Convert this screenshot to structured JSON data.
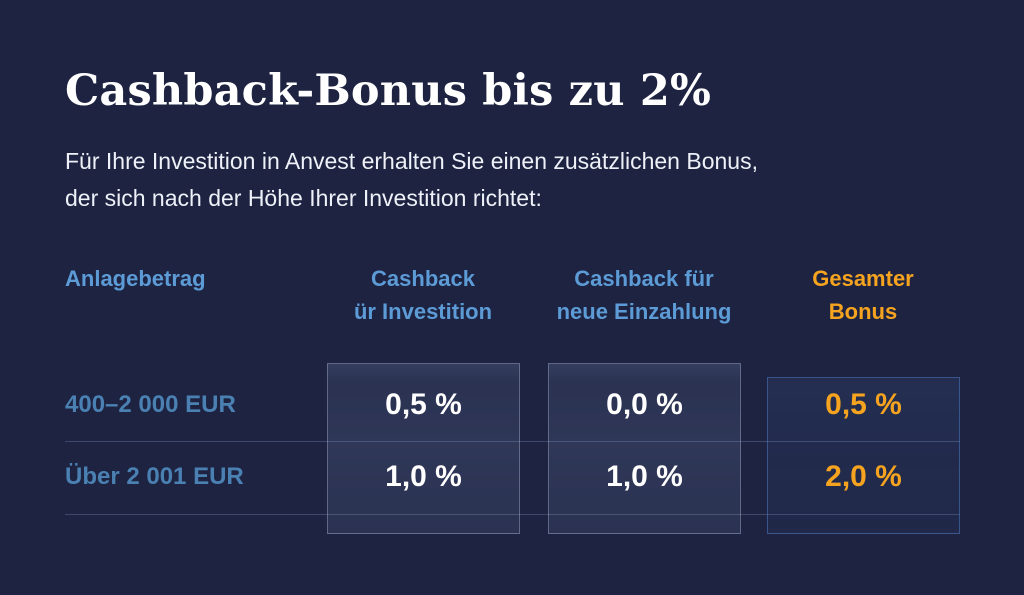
{
  "page": {
    "title": "Cashback-Bonus bis zu 2%",
    "subtitle_line1": "Für Ihre Investition in Anvest erhalten Sie einen zusätzlichen Bonus,",
    "subtitle_line2": "der sich nach der Höhe Ihrer Investition richtet:"
  },
  "colors": {
    "background": "#1d2341",
    "title_text": "#ffffff",
    "body_text": "#eef1f7",
    "column_header_blue": "#5c9bd6",
    "row_label_blue": "#4a80b2",
    "accent_orange": "#f6a41f",
    "value_white": "#ffffff",
    "panel_border_gray": "rgba(168,178,202,0.42)",
    "panel_border_blue": "rgba(74,122,192,0.55)"
  },
  "table": {
    "headers": {
      "col1": "Anlagebetrag",
      "col2_line1": "Cashback",
      "col2_line2": "ür Investition",
      "col3_line1": "Cashback für",
      "col3_line2": "neue Einzahlung",
      "col4_line1": "Gesamter",
      "col4_line2": "Bonus"
    },
    "rows": [
      {
        "label": "400–2 000 EUR",
        "cashback_investment": "0,5 %",
        "cashback_new_deposit": "0,0 %",
        "total_bonus": "0,5 %"
      },
      {
        "label": "Über 2 001 EUR",
        "cashback_investment": "1,0 %",
        "cashback_new_deposit": "1,0 %",
        "total_bonus": "2,0 %"
      }
    ]
  },
  "chart_data": {
    "type": "table",
    "title": "Cashback-Bonus bis zu 2%",
    "columns": [
      "Anlagebetrag",
      "Cashback ür Investition",
      "Cashback für neue Einzahlung",
      "Gesamter Bonus"
    ],
    "rows": [
      [
        "400–2 000 EUR",
        "0,5 %",
        "0,0 %",
        "0,5 %"
      ],
      [
        "Über 2 001 EUR",
        "1,0 %",
        "1,0 %",
        "2,0 %"
      ]
    ],
    "notes": "Highlighted value columns; 'Gesamter Bonus' column emphasized in orange with blue-bordered panel"
  }
}
